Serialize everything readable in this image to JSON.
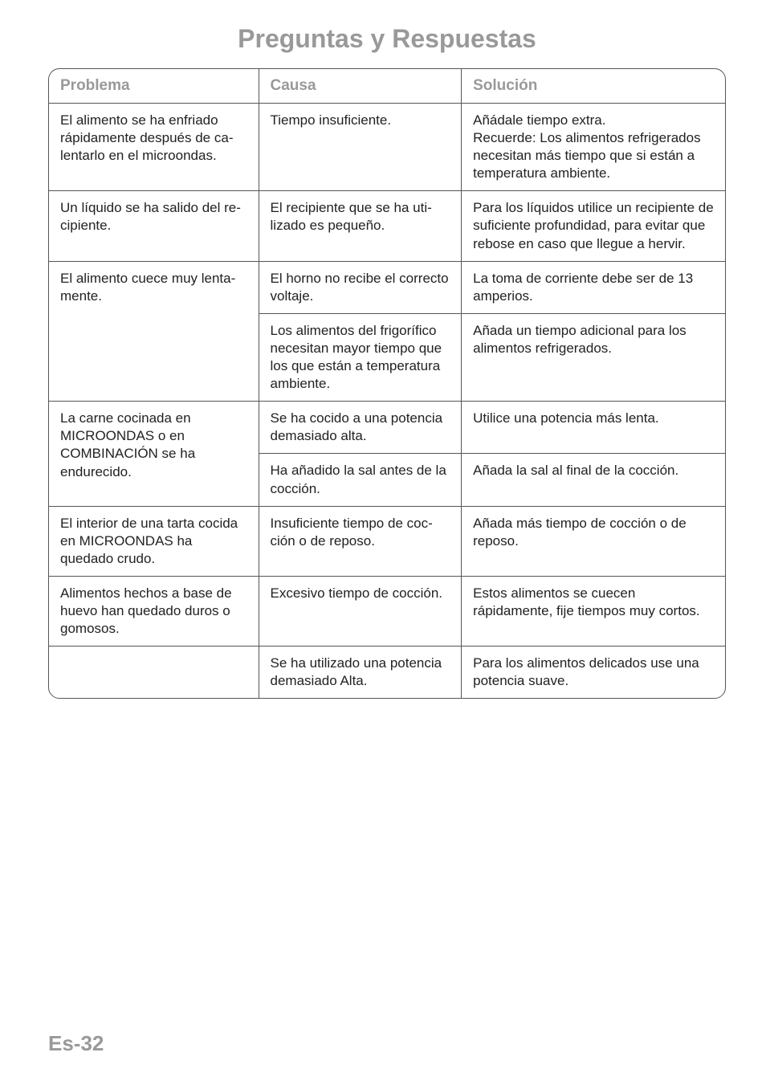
{
  "page": {
    "title": "Preguntas y Respuestas",
    "footer": "Es-32",
    "colors": {
      "title_color": "#999999",
      "header_color": "#999999",
      "border_color": "#555555",
      "text_color": "#222222",
      "background": "#ffffff"
    },
    "fontsize": {
      "title_pt": 32,
      "header_pt": 19,
      "cell_pt": 17,
      "footer_pt": 26
    }
  },
  "table": {
    "type": "table",
    "columns": [
      "Problema",
      "Causa",
      "Solución"
    ],
    "column_widths_pct": [
      31,
      30,
      39
    ],
    "rows": [
      {
        "problema": "El alimento se ha enfriado rápidamente después de ca­lentarlo en el microondas.",
        "causa": "Tiempo insuficiente.",
        "solucion": "Añádale tiempo extra.\nRecuerde: Los alimentos refrigera­dos necesitan más tiempo que si están a temperatura ambiente.",
        "prob_rowspan": 1
      },
      {
        "problema": "Un líquido se ha salido del re­cipiente.",
        "causa": "El recipiente que se ha uti­lizado es pequeño.",
        "solucion": "Para los líquidos utilice un recipi­ente de suficiente profundidad, para evitar que rebose en caso que llegue a hervir.",
        "prob_rowspan": 1
      },
      {
        "problema": "El alimento cuece muy lenta­mente.",
        "causa": "El horno no recibe el correcto voltaje.",
        "solucion": "La toma de corriente debe ser de 13 amperios.",
        "prob_rowspan": 2
      },
      {
        "causa": "Los alimentos del frigorífico necesitan mayor tiempo que los que están a temperatura ambiente.",
        "solucion": "Añada un tiempo adicional para los alimentos refrigerados."
      },
      {
        "problema": "La carne cocinada en MICROONDAS o en COMBINACIÓN se ha endurecido.",
        "causa": "Se ha cocido a una poten­cia demasiado alta.",
        "solucion": "Utilice una potencia más lenta.",
        "prob_rowspan": 2
      },
      {
        "causa": "Ha añadido la sal antes de la cocción.",
        "solucion": "Añada la sal al final de la cocción."
      },
      {
        "problema": "El interior de una tarta cocida en MICROONDAS ha quedado crudo.",
        "causa": "Insuficiente tiempo de coc­ción o de reposo.",
        "solucion": "Añada más tiempo de cocción o de reposo.",
        "prob_rowspan": 1
      },
      {
        "problema": "Alimentos hechos a base  de huevo han quedado duros o gomosos.",
        "causa": "Excesivo tiempo de coc­ción.",
        "solucion": "Estos alimentos se cuecen rápidamente, fije tiempos muy cortos.",
        "prob_rowspan": 1
      },
      {
        "problema": "",
        "causa": "Se ha utilizado una poten­cia demasiado Alta.",
        "solucion": "Para los alimentos delicados use una potencia suave.",
        "prob_rowspan": 1
      }
    ]
  }
}
